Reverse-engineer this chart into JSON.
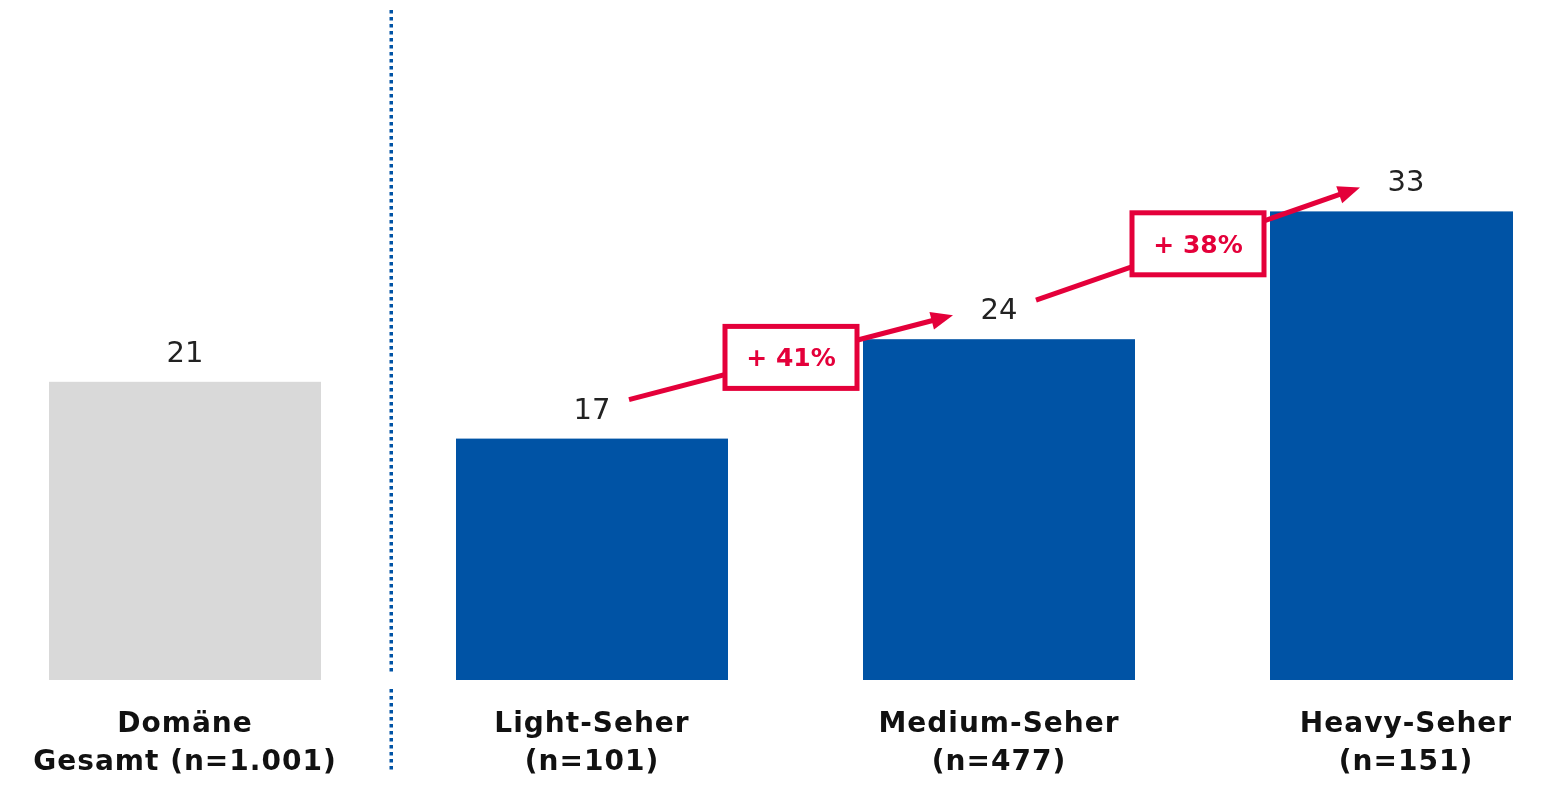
{
  "chart_data": {
    "type": "bar",
    "categories": [
      "Domäne\nGesamt (n=1.001)",
      "Light-Seher\n(n=101)",
      "Medium-Seher\n(n=477)",
      "Heavy-Seher\n(n=151)"
    ],
    "values": [
      21,
      17,
      24,
      33
    ],
    "colors": [
      "#d9d9d9",
      "#0053a5",
      "#0053a5",
      "#0053a5"
    ],
    "data_labels": true,
    "annotations": [
      "+ 41%",
      "+ 38%"
    ]
  }
}
